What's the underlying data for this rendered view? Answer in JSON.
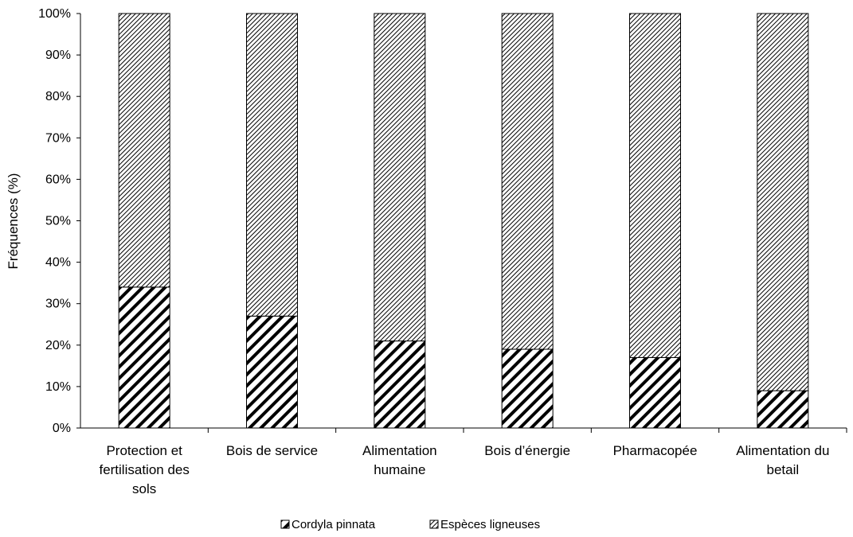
{
  "chart_data": {
    "type": "bar",
    "stacked": true,
    "percent": true,
    "categories": [
      "Protection et fertilisation des sols",
      "Bois de service",
      "Alimentation humaine",
      "Bois d’énergie",
      "Pharmacopée",
      "Alimentation du betail"
    ],
    "category_lines": [
      [
        "Protection et",
        "fertilisation des",
        "sols"
      ],
      [
        "Bois de service"
      ],
      [
        "Alimentation",
        "humaine"
      ],
      [
        "Bois d’énergie"
      ],
      [
        "Pharmacopée"
      ],
      [
        "Alimentation du",
        "betail"
      ]
    ],
    "series": [
      {
        "name": "Cordyla pinnata",
        "values": [
          34,
          27,
          21,
          19,
          17,
          9
        ],
        "pattern": "dense-hatch"
      },
      {
        "name": "Espèces ligneuses",
        "values": [
          66,
          73,
          79,
          81,
          83,
          91
        ],
        "pattern": "fine-hatch"
      }
    ],
    "title": "",
    "xlabel": "",
    "ylabel": "Fréquences (%)",
    "ylim": [
      0,
      100
    ],
    "yticks": [
      "0%",
      "10%",
      "20%",
      "30%",
      "40%",
      "50%",
      "60%",
      "70%",
      "80%",
      "90%",
      "100%"
    ],
    "grid": false,
    "legend_position": "bottom"
  }
}
